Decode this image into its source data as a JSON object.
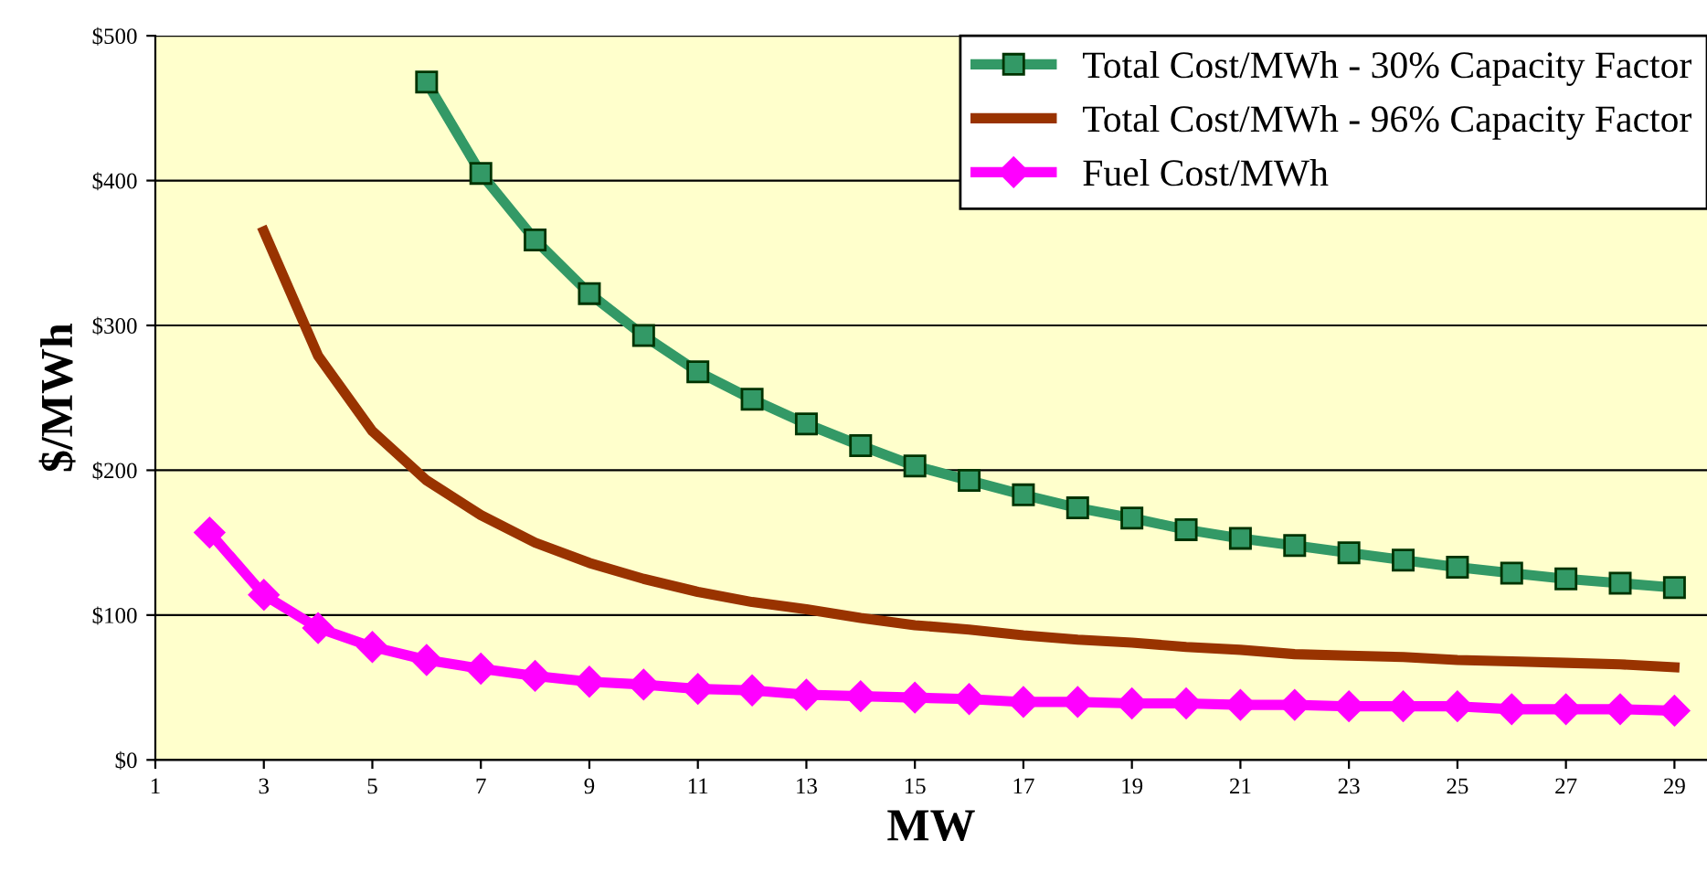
{
  "chart_data": {
    "type": "line",
    "xlabel": "MW",
    "ylabel": "$/MWh",
    "xlim": [
      1,
      29.6
    ],
    "xticks": [
      1,
      3,
      5,
      7,
      9,
      11,
      13,
      15,
      17,
      19,
      21,
      23,
      25,
      27,
      29
    ],
    "ylim": [
      0,
      500
    ],
    "yticks": [
      {
        "value": 0,
        "label": "$0"
      },
      {
        "value": 100,
        "label": "$100"
      },
      {
        "value": 200,
        "label": "$200"
      },
      {
        "value": 300,
        "label": "$300"
      },
      {
        "value": 400,
        "label": "$400"
      },
      {
        "value": 500,
        "label": "$500"
      }
    ],
    "grid": "y",
    "legend": "top right",
    "series": [
      {
        "name": "Total Cost/MWh - 30% Capacity Factor",
        "color": "#339966",
        "marker": "square",
        "x": [
          6,
          7,
          8,
          9,
          10,
          11,
          12,
          13,
          14,
          15,
          16,
          17,
          18,
          19,
          20,
          21,
          22,
          23,
          24,
          25,
          26,
          27,
          28,
          29
        ],
        "values": [
          468,
          405,
          359,
          322,
          293,
          268,
          249,
          232,
          217,
          203,
          193,
          183,
          174,
          167,
          159,
          153,
          148,
          143,
          138,
          133,
          129,
          125,
          122,
          119
        ]
      },
      {
        "name": "Total Cost/MWh - 96% Capacity Factor",
        "color": "#993300",
        "marker": "none",
        "x": [
          3,
          4,
          5,
          6,
          7,
          8,
          9,
          10,
          11,
          12,
          13,
          14,
          15,
          16,
          17,
          18,
          19,
          20,
          21,
          22,
          23,
          24,
          25,
          26,
          27,
          28,
          29
        ],
        "values": [
          365,
          279,
          227,
          193,
          169,
          150,
          136,
          125,
          116,
          109,
          104,
          98,
          93,
          90,
          86,
          83,
          81,
          78,
          76,
          73,
          72,
          71,
          69,
          68,
          67,
          66,
          64
        ]
      },
      {
        "name": "Fuel Cost/MWh",
        "color": "#ff00ff",
        "marker": "diamond",
        "x": [
          2,
          3,
          4,
          5,
          6,
          7,
          8,
          9,
          10,
          11,
          12,
          13,
          14,
          15,
          16,
          17,
          18,
          19,
          20,
          21,
          22,
          23,
          24,
          25,
          26,
          27,
          28,
          29
        ],
        "values": [
          157,
          114,
          91,
          78,
          69,
          63,
          58,
          54,
          52,
          49,
          48,
          45,
          44,
          43,
          42,
          40,
          40,
          39,
          39,
          38,
          38,
          37,
          37,
          37,
          35,
          35,
          35,
          34
        ]
      }
    ]
  }
}
